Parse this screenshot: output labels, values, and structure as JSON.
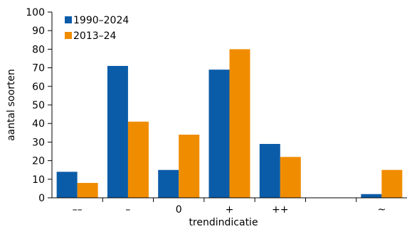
{
  "chart_data": {
    "type": "bar",
    "title": "",
    "xlabel": "trendindicatie",
    "ylabel": "aantal soorten",
    "ylim": [
      0,
      100
    ],
    "yticks": [
      0,
      10,
      20,
      30,
      40,
      50,
      60,
      70,
      80,
      90,
      100
    ],
    "categories": [
      "––",
      "–",
      "0",
      "+",
      "++",
      "",
      "~"
    ],
    "series": [
      {
        "name": "1990–2024",
        "color": "#0b5ca8",
        "values": [
          14,
          71,
          15,
          69,
          29,
          0,
          2
        ]
      },
      {
        "name": "2013–24",
        "color": "#f08c00",
        "values": [
          8,
          41,
          34,
          80,
          22,
          0,
          15
        ]
      }
    ],
    "grid": false,
    "legend": "top-left"
  }
}
